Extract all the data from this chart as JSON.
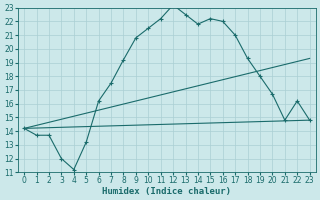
{
  "xlabel": "Humidex (Indice chaleur)",
  "bg_color": "#cce8ea",
  "grid_color": "#aacfd4",
  "line_color": "#1a6b6b",
  "xlim": [
    -0.5,
    23.5
  ],
  "ylim": [
    11,
    23
  ],
  "xticks": [
    0,
    1,
    2,
    3,
    4,
    5,
    6,
    7,
    8,
    9,
    10,
    11,
    12,
    13,
    14,
    15,
    16,
    17,
    18,
    19,
    20,
    21,
    22,
    23
  ],
  "yticks": [
    11,
    12,
    13,
    14,
    15,
    16,
    17,
    18,
    19,
    20,
    21,
    22,
    23
  ],
  "line1_x": [
    0,
    1,
    2,
    3,
    4,
    5,
    6,
    7,
    8,
    9,
    10,
    11,
    12,
    13,
    14,
    15,
    16,
    17,
    18,
    19,
    20,
    21,
    22,
    23
  ],
  "line1_y": [
    14.2,
    13.7,
    13.7,
    12.0,
    11.2,
    13.2,
    16.2,
    17.5,
    19.2,
    20.8,
    21.5,
    22.2,
    23.2,
    22.5,
    21.8,
    22.2,
    22.0,
    21.0,
    19.3,
    18.0,
    16.7,
    14.8,
    16.2,
    14.8
  ],
  "line2_x": [
    0,
    23
  ],
  "line2_y": [
    14.2,
    14.8
  ],
  "line3_x": [
    0,
    23
  ],
  "line3_y": [
    14.2,
    19.3
  ],
  "font_size_label": 6.5,
  "font_size_tick": 5.5
}
